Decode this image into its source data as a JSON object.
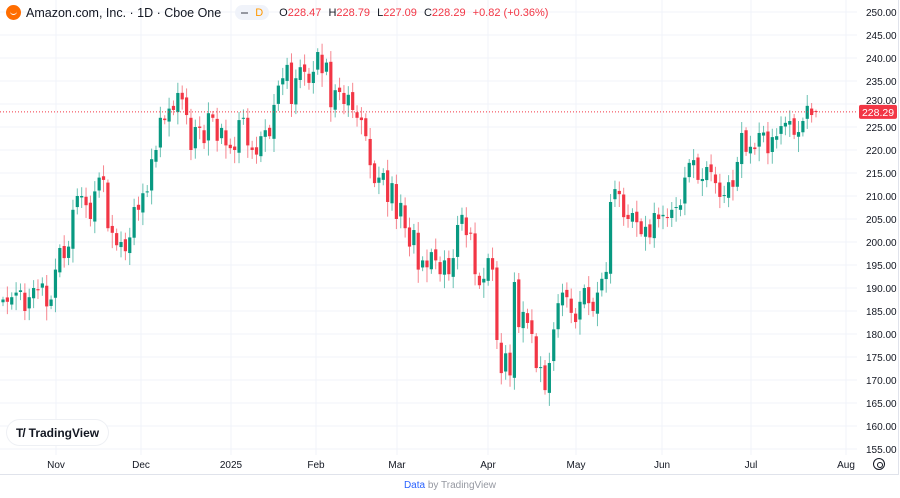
{
  "header": {
    "title": "Amazon.com, Inc. · 1D · Cboe One",
    "badge": "D",
    "ohlc": {
      "o_label": "O",
      "o": "228.47",
      "h_label": "H",
      "h": "228.79",
      "l_label": "L",
      "l": "227.09",
      "c_label": "C",
      "c": "228.29",
      "change": "+0.82 (+0.36%)"
    }
  },
  "watermark": "TradingView",
  "footer": {
    "link": "Data",
    "rest": "by TradingView"
  },
  "colors": {
    "up": "#089981",
    "down": "#F23645",
    "grid": "#f0f3fa",
    "last": "#F23645"
  },
  "chart_data": {
    "type": "candlestick",
    "title": "Amazon.com, Inc. · 1D · Cboe One",
    "ylim": [
      155,
      250
    ],
    "yticks": [
      "250.00",
      "245.00",
      "240.00",
      "235.00",
      "230.00",
      "225.00",
      "220.00",
      "215.00",
      "210.00",
      "205.00",
      "200.00",
      "195.00",
      "190.00",
      "185.00",
      "180.00",
      "175.00",
      "170.00",
      "165.00",
      "160.00",
      "155.00"
    ],
    "xticks": [
      "Nov",
      "Dec",
      "2025",
      "Feb",
      "Mar",
      "Apr",
      "May",
      "Jun",
      "Jul",
      "Aug"
    ],
    "last_price": "228.29",
    "last_candle": {
      "open": 228.47,
      "high": 228.79,
      "low": 227.09,
      "close": 228.29
    },
    "closes": [
      187.5,
      187,
      188,
      189,
      189.5,
      185,
      188,
      190,
      189.5,
      191,
      186,
      187.5,
      194,
      198.7,
      196.5,
      199,
      207,
      210,
      210,
      208,
      205,
      211,
      214,
      213.5,
      203,
      202,
      199.3,
      200,
      198,
      201,
      207.6,
      207,
      210.6,
      211,
      218,
      220,
      227,
      226.5,
      229,
      228.7,
      232.4,
      231,
      227.6,
      220,
      225,
      224.8,
      221.5,
      228,
      227,
      222,
      224.8,
      221,
      220.4,
      220,
      226.5,
      227,
      221,
      220,
      219,
      223,
      224.3,
      223,
      229.8,
      234,
      235.6,
      238.5,
      230,
      235.6,
      238,
      237,
      234.6,
      237,
      241.3,
      236.7,
      239,
      229.3,
      233,
      232.6,
      230,
      232,
      228.7,
      227,
      226.5,
      223,
      216.7,
      212.8,
      214,
      215,
      208.7,
      212.8,
      205,
      208.5,
      203,
      199,
      202.6,
      194,
      196,
      194.5,
      197.8,
      196,
      193,
      196,
      193,
      196.5,
      203.7,
      205.9,
      201.5,
      202,
      193,
      190.6,
      192,
      196.5,
      194,
      178.7,
      171.5,
      175.8,
      171,
      191.3,
      181.5,
      184.8,
      182.4,
      180,
      172.6,
      172.8,
      167.8,
      173.7,
      181,
      186.7,
      189,
      188,
      184.6,
      182.6,
      187,
      190,
      186.7,
      185,
      189,
      192,
      193.5,
      208.7,
      211.5,
      210.4,
      205.4,
      205,
      206.3,
      204.3,
      201.7,
      203.3,
      201,
      206.3,
      205,
      205.9,
      205.2,
      207,
      207.6,
      208,
      214,
      217.2,
      217.8,
      213.5,
      213.7,
      216.3,
      215.2,
      212.8,
      209.8,
      210.2,
      213,
      212,
      217.4,
      223.7,
      219.6,
      220.7,
      220.2,
      223.7,
      223.8,
      219.3,
      222.8,
      223,
      225.2,
      225.9,
      226.3,
      223.3,
      223.9,
      226.3,
      229.6,
      227.6
    ]
  }
}
